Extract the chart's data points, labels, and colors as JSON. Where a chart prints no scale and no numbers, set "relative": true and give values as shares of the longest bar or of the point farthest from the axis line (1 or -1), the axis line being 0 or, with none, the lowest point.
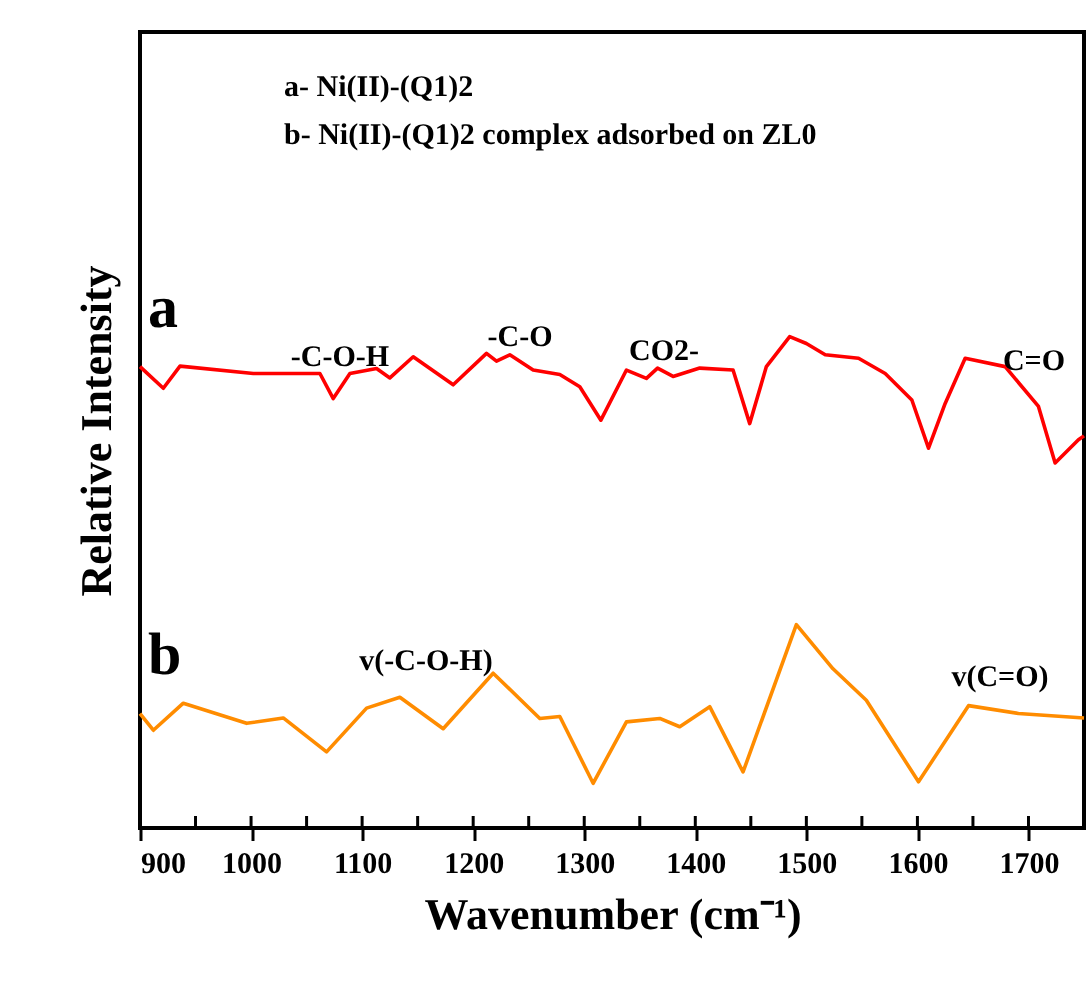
{
  "chart_data": {
    "type": "line",
    "relative": true,
    "xlabel": "Wavenumber (cm⁻¹)",
    "ylabel": "Relative Intensity",
    "xlim": [
      900,
      1750
    ],
    "xticks": [
      900,
      {
        "value": 950,
        "label": null
      },
      1000,
      {
        "value": 1050,
        "label": null
      },
      1100,
      {
        "value": 1150,
        "label": null
      },
      1200,
      {
        "value": 1250,
        "label": null
      },
      1300,
      {
        "value": 1350,
        "label": null
      },
      1400,
      {
        "value": 1450,
        "label": null
      },
      1500,
      {
        "value": 1550,
        "label": null
      },
      1600,
      {
        "value": 1650,
        "label": null
      },
      1700
    ],
    "grid": false,
    "marker": "none",
    "line_style": "solid",
    "series": [
      {
        "name": "a",
        "color": "#ff0000",
        "x": [
          900,
          921,
          936,
          1002,
          1062,
          1074,
          1089,
          1113,
          1125,
          1146,
          1182,
          1212,
          1221,
          1233,
          1254,
          1278,
          1296,
          1315,
          1338,
          1356,
          1366,
          1380,
          1404,
          1434,
          1449,
          1464,
          1485,
          1500,
          1517,
          1547,
          1571,
          1595,
          1610,
          1625,
          1643,
          1679,
          1709,
          1724,
          1745,
          1750
        ],
        "values": [
          0.939,
          0.895,
          0.94,
          0.925,
          0.925,
          0.874,
          0.925,
          0.935,
          0.916,
          0.959,
          0.902,
          0.966,
          0.95,
          0.963,
          0.932,
          0.923,
          0.898,
          0.83,
          0.932,
          0.915,
          0.936,
          0.919,
          0.936,
          0.932,
          0.823,
          0.939,
          1.0,
          0.986,
          0.963,
          0.956,
          0.925,
          0.871,
          0.773,
          0.864,
          0.956,
          0.939,
          0.858,
          0.743,
          0.79,
          0.798
        ]
      },
      {
        "name": "b",
        "color": "#ff8c00",
        "x": [
          900,
          912,
          939,
          996,
          1029,
          1068,
          1104,
          1134,
          1173,
          1218,
          1260,
          1278,
          1308,
          1338,
          1368,
          1386,
          1413,
          1443,
          1491,
          1524,
          1554,
          1601,
          1646,
          1691,
          1750
        ],
        "values": [
          0.233,
          0.199,
          0.254,
          0.213,
          0.224,
          0.155,
          0.244,
          0.266,
          0.202,
          0.315,
          0.223,
          0.227,
          0.091,
          0.216,
          0.223,
          0.206,
          0.247,
          0.114,
          0.414,
          0.324,
          0.26,
          0.094,
          0.249,
          0.233,
          0.224
        ]
      }
    ],
    "annotations": [
      "a- Ni(II)-(Q1)2",
      "b- Ni(II)-(Q1)2 complex adsorbed on ZL0",
      "-C-O-H",
      "-C-O",
      "CO2-",
      "C=O",
      "v(-C-O-H)",
      "v(C=O)"
    ]
  }
}
